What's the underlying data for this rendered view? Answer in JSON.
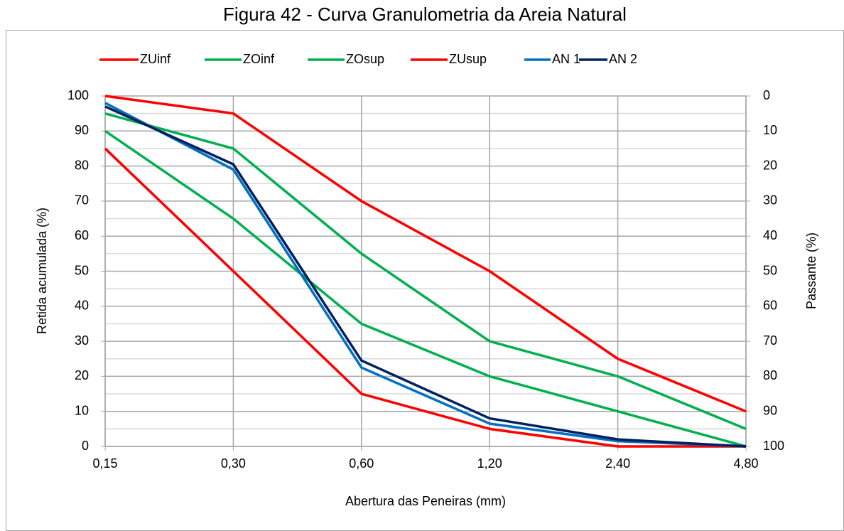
{
  "chart_data": {
    "type": "line",
    "title": "Figura 42 - Curva Granulometria da Areia Natural",
    "x_label": "Abertura das Peneiras (mm)",
    "y_label": "Retida acumulada (%)",
    "y2_label": "Passante (%)",
    "categories": [
      "0,15",
      "0,30",
      "0,60",
      "1,20",
      "2,40",
      "4,80"
    ],
    "series": [
      {
        "name": "ZUinf",
        "color": "#ff0000",
        "values": [
          85,
          50,
          15,
          5,
          0,
          0
        ]
      },
      {
        "name": "ZOinf",
        "color": "#00b050",
        "values": [
          90,
          65,
          35,
          20,
          10,
          0
        ]
      },
      {
        "name": "ZOsup",
        "color": "#00b050",
        "values": [
          95,
          85,
          55,
          30,
          20,
          5
        ]
      },
      {
        "name": "ZUsup",
        "color": "#ff0000",
        "values": [
          100,
          95,
          70,
          50,
          25,
          10
        ]
      },
      {
        "name": "AN 1",
        "color": "#0070c0",
        "values": [
          98,
          79,
          22.5,
          6.5,
          1.5,
          0
        ]
      },
      {
        "name": "AN 2",
        "color": "#002060",
        "values": [
          97,
          80.5,
          24.5,
          8,
          2,
          0
        ]
      }
    ],
    "ylim": [
      0,
      100
    ],
    "yticks": [
      0,
      10,
      20,
      30,
      40,
      50,
      60,
      70,
      80,
      90,
      100
    ],
    "y_minor_ticks": [
      5,
      15,
      25,
      35,
      45,
      55,
      65,
      75,
      85,
      95
    ],
    "y2lim": [
      100,
      0
    ],
    "y2ticks": [
      0,
      10,
      20,
      30,
      40,
      50,
      60,
      70,
      80,
      90,
      100
    ],
    "grid": true,
    "legend": "top"
  }
}
